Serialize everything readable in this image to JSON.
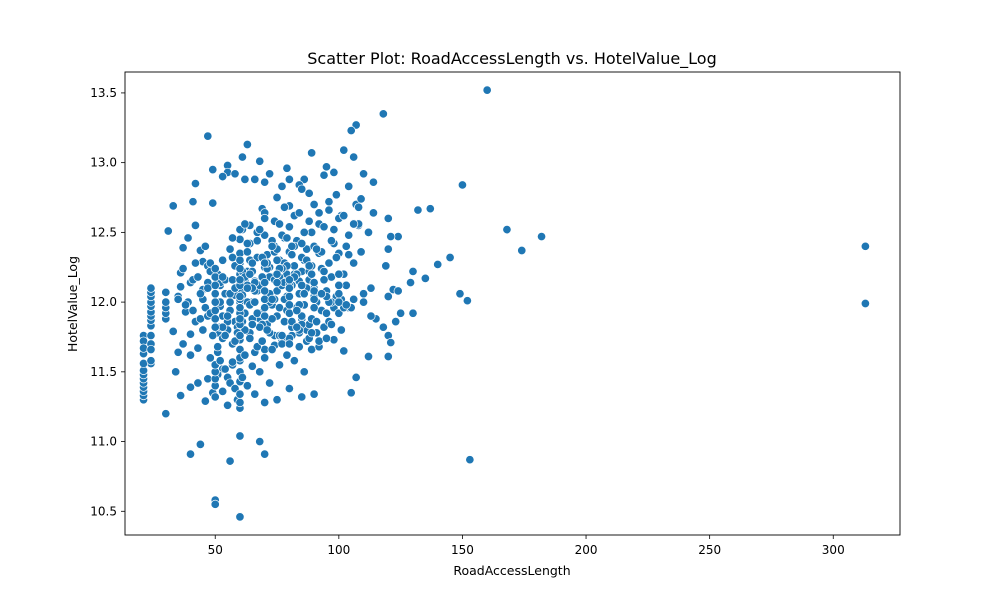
{
  "chart_data": {
    "type": "scatter",
    "title": "Scatter Plot: RoadAccessLength vs. HotelValue_Log",
    "xlabel": "RoadAccessLength",
    "ylabel": "HotelValue_Log",
    "xlim": [
      13.5,
      327
    ],
    "ylim": [
      10.33,
      13.65
    ],
    "xticks": [
      50,
      100,
      150,
      200,
      250,
      300
    ],
    "yticks": [
      10.5,
      11.0,
      11.5,
      12.0,
      12.5,
      13.0,
      13.5
    ],
    "ytick_labels": [
      "10.5",
      "11.0",
      "11.5",
      "12.0",
      "12.5",
      "13.0",
      "13.5"
    ],
    "grid": false,
    "legend": "none",
    "color": "#1f77b4",
    "series": [
      {
        "x": [
          160,
          118,
          107,
          105,
          47,
          63,
          61,
          68,
          55,
          49,
          55,
          72,
          89,
          95,
          110,
          114,
          106,
          102,
          98,
          94,
          86,
          84,
          80,
          79,
          77,
          70,
          66,
          62,
          58,
          53,
          49,
          42,
          41,
          33,
          31,
          42,
          37,
          39,
          44,
          45,
          47,
          50,
          61,
          64,
          69,
          70,
          75,
          80,
          85,
          88,
          92,
          96,
          99,
          101,
          104,
          107,
          108,
          109,
          150,
          168,
          182,
          174,
          137,
          132,
          130,
          129,
          124,
          121,
          119,
          120,
          122,
          124,
          120,
          113,
          110,
          106,
          100,
          98,
          95,
          89,
          87,
          84,
          81,
          77,
          74,
          70,
          66,
          60,
          57,
          53,
          51,
          47,
          43,
          40,
          36,
          34,
          30,
          24,
          21,
          21,
          21,
          21,
          21,
          21,
          21,
          21,
          21,
          21,
          21,
          21,
          21,
          21,
          24,
          24,
          24,
          24,
          24,
          24,
          24,
          24,
          24,
          24,
          24,
          24,
          24,
          30,
          30,
          30,
          30,
          30,
          33,
          35,
          35,
          36,
          36,
          37,
          38,
          39,
          40,
          40,
          40,
          41,
          42,
          43,
          44,
          45,
          45,
          46,
          47,
          48,
          49,
          50,
          50,
          50,
          50,
          50,
          51,
          51,
          51,
          51,
          52,
          52,
          52,
          52,
          53,
          53,
          53,
          54,
          54,
          55,
          55,
          55,
          56,
          56,
          57,
          57,
          57,
          58,
          58,
          59,
          59,
          60,
          60,
          60,
          60,
          60,
          60,
          60,
          60,
          60,
          60,
          60,
          60,
          60,
          60,
          60,
          60,
          60,
          60,
          60,
          61,
          61,
          62,
          62,
          63,
          63,
          64,
          64,
          65,
          65,
          66,
          66,
          67,
          67,
          68,
          68,
          69,
          69,
          70,
          70,
          70,
          70,
          70,
          71,
          71,
          72,
          72,
          73,
          73,
          74,
          74,
          75,
          75,
          75,
          76,
          76,
          77,
          77,
          78,
          78,
          79,
          79,
          80,
          80,
          80,
          80,
          81,
          81,
          82,
          82,
          83,
          83,
          84,
          84,
          85,
          85,
          85,
          86,
          86,
          87,
          87,
          88,
          88,
          89,
          89,
          90,
          90,
          90,
          90,
          91,
          91,
          92,
          93,
          94,
          95,
          96,
          97,
          98,
          99,
          100,
          100,
          101,
          102,
          103,
          104,
          105,
          106,
          107,
          108,
          110,
          112,
          115,
          118,
          120,
          120,
          121,
          125,
          130,
          135,
          140,
          145,
          149,
          152,
          153,
          40,
          44,
          56,
          60,
          68,
          70,
          50,
          50,
          60,
          313,
          313,
          46,
          48,
          52,
          56,
          58,
          62,
          64,
          66,
          72,
          74,
          76,
          78,
          82,
          84,
          86,
          88,
          92,
          94,
          96,
          98,
          102,
          104,
          63,
          67,
          71,
          73,
          77,
          79,
          83,
          87,
          91,
          93,
          97,
          55,
          59,
          65,
          69,
          75,
          81,
          85,
          89,
          95,
          61,
          65,
          71,
          75,
          79,
          85,
          89,
          52,
          56,
          58,
          62,
          66,
          68,
          72,
          74,
          78,
          82,
          86,
          54,
          58,
          62,
          64,
          68,
          72,
          76,
          80,
          84,
          88,
          92,
          57,
          63,
          67,
          73,
          77,
          81,
          46,
          48,
          52,
          56,
          60,
          64,
          68,
          72,
          76,
          50,
          54,
          58,
          62,
          66,
          70,
          74,
          80,
          86,
          63,
          69,
          75,
          81,
          87,
          93,
          99,
          55,
          61,
          67,
          73,
          79,
          85,
          91,
          97,
          59,
          65,
          71,
          77,
          83,
          89,
          60,
          66,
          72,
          78,
          84,
          90,
          96,
          102,
          43,
          47,
          51,
          57,
          63,
          69,
          75,
          45,
          49,
          53,
          59,
          65,
          71,
          77,
          83,
          89,
          95,
          101,
          62,
          68,
          74,
          80,
          86,
          92,
          98,
          104,
          70,
          76,
          82,
          88,
          94,
          100,
          106,
          112,
          67,
          73,
          79,
          85,
          91,
          97,
          103,
          109,
          78,
          84,
          90,
          96,
          102,
          108,
          114,
          120,
          35,
          38,
          41,
          44,
          47,
          37,
          42,
          48,
          53,
          58,
          64,
          70,
          76,
          82,
          88,
          94,
          100,
          60,
          60,
          60,
          60,
          60,
          60,
          60,
          60,
          60,
          60,
          50,
          50,
          50,
          50,
          50,
          50,
          50,
          50,
          70,
          70,
          70,
          70,
          70,
          80,
          80,
          80,
          80,
          80,
          90,
          90,
          90,
          90,
          100,
          100,
          100,
          65,
          75,
          85,
          95,
          105,
          53,
          63,
          73,
          83,
          93,
          103,
          113,
          123
        ],
        "y": [
          13.52,
          13.35,
          13.27,
          13.23,
          13.19,
          13.13,
          13.04,
          13.01,
          12.98,
          12.95,
          12.93,
          12.92,
          13.07,
          12.97,
          12.92,
          12.86,
          13.04,
          13.09,
          12.93,
          12.91,
          12.88,
          12.84,
          12.88,
          12.96,
          12.83,
          12.86,
          12.88,
          12.88,
          12.92,
          12.9,
          12.71,
          12.85,
          12.72,
          12.69,
          12.51,
          12.55,
          12.39,
          12.46,
          12.37,
          12.29,
          12.26,
          12.24,
          12.52,
          12.55,
          12.67,
          12.64,
          12.75,
          12.69,
          12.81,
          12.78,
          12.64,
          12.72,
          12.77,
          12.62,
          12.83,
          12.7,
          12.55,
          12.74,
          12.84,
          12.52,
          12.47,
          12.37,
          12.67,
          12.66,
          12.22,
          12.14,
          12.47,
          12.47,
          12.26,
          12.38,
          12.09,
          12.08,
          12.04,
          12.1,
          12.06,
          12.02,
          12.0,
          11.96,
          11.92,
          11.87,
          11.8,
          11.78,
          11.76,
          11.72,
          11.69,
          11.66,
          11.64,
          11.58,
          11.55,
          11.52,
          11.48,
          11.45,
          11.42,
          11.39,
          11.33,
          11.5,
          11.2,
          11.56,
          11.3,
          11.33,
          11.36,
          11.39,
          11.42,
          11.45,
          11.48,
          11.51,
          11.56,
          11.63,
          11.68,
          11.76,
          11.72,
          11.67,
          11.76,
          11.83,
          11.87,
          11.9,
          11.93,
          11.97,
          12.0,
          12.04,
          12.07,
          12.1,
          11.7,
          11.66,
          11.58,
          11.88,
          11.92,
          11.96,
          12.0,
          12.07,
          11.79,
          11.64,
          12.04,
          12.21,
          12.11,
          11.7,
          11.93,
          12.0,
          12.14,
          11.62,
          11.77,
          12.16,
          11.86,
          11.67,
          11.88,
          12.02,
          12.09,
          11.29,
          11.9,
          11.6,
          11.35,
          11.4,
          11.45,
          11.5,
          11.55,
          11.32,
          11.64,
          11.78,
          12.19,
          11.68,
          11.82,
          11.97,
          12.14,
          11.58,
          11.74,
          11.36,
          11.9,
          11.52,
          12.06,
          11.26,
          11.46,
          11.8,
          12.0,
          11.42,
          11.7,
          12.32,
          11.57,
          11.86,
          11.38,
          12.1,
          11.3,
          11.24,
          11.28,
          11.34,
          11.43,
          11.5,
          11.6,
          11.66,
          11.73,
          11.8,
          11.87,
          11.94,
          12.0,
          12.08,
          12.13,
          12.2,
          12.28,
          12.35,
          12.45,
          12.52,
          11.46,
          12.05,
          11.62,
          11.92,
          11.4,
          12.22,
          11.78,
          12.42,
          11.54,
          12.0,
          11.34,
          12.15,
          11.68,
          12.32,
          11.88,
          11.5,
          12.1,
          11.72,
          11.28,
          11.6,
          11.96,
          12.25,
          12.48,
          11.84,
          12.34,
          11.42,
          12.02,
          11.66,
          12.18,
          11.76,
          12.4,
          11.3,
          12.08,
          11.9,
          11.55,
          12.3,
          11.7,
          12.14,
          11.86,
          12.46,
          11.62,
          12.2,
          11.38,
          11.74,
          12.04,
          12.36,
          11.82,
          12.12,
          11.58,
          12.26,
          11.94,
          12.44,
          11.68,
          12.06,
          11.32,
          11.88,
          12.22,
          11.5,
          11.98,
          12.38,
          11.72,
          12.16,
          11.84,
          12.5,
          11.66,
          11.96,
          11.34,
          12.1,
          12.4,
          11.78,
          12.0,
          11.68,
          12.24,
          11.82,
          12.08,
          11.86,
          12.18,
          11.73,
          12.04,
          11.92,
          12.35,
          12.02,
          11.65,
          12.12,
          11.96,
          11.35,
          12.28,
          11.46,
          12.56,
          12.0,
          11.61,
          11.88,
          11.82,
          11.76,
          11.61,
          11.71,
          11.92,
          11.92,
          12.17,
          12.27,
          12.32,
          12.06,
          12.01,
          10.87,
          10.91,
          10.98,
          10.86,
          11.04,
          11.0,
          10.91,
          10.58,
          10.55,
          10.46,
          12.4,
          11.99,
          12.4,
          12.28,
          12.12,
          12.38,
          12.05,
          12.2,
          12.3,
          12.1,
          12.25,
          12.36,
          12.18,
          12.28,
          12.4,
          12.15,
          12.3,
          12.22,
          12.35,
          12.16,
          12.28,
          12.42,
          12.2,
          12.34,
          12.0,
          12.08,
          12.02,
          11.98,
          12.12,
          12.04,
          11.96,
          12.1,
          12.06,
          11.94,
          12.0,
          11.86,
          11.82,
          11.88,
          11.84,
          11.9,
          11.86,
          11.84,
          11.88,
          11.92,
          12.22,
          12.28,
          12.24,
          12.3,
          12.26,
          12.32,
          12.2,
          12.14,
          12.06,
          12.1,
          12.16,
          12.08,
          12.12,
          12.18,
          12.02,
          12.14,
          12.2,
          12.06,
          11.76,
          11.72,
          11.8,
          11.74,
          11.82,
          11.78,
          11.76,
          11.7,
          11.8,
          11.74,
          11.72,
          12.46,
          12.42,
          12.5,
          12.44,
          12.48,
          12.4,
          11.96,
          11.92,
          12.0,
          11.94,
          12.02,
          11.98,
          11.92,
          12.0,
          11.96,
          12.12,
          12.16,
          12.1,
          12.18,
          12.14,
          12.08,
          12.16,
          12.12,
          12.06,
          12.36,
          12.32,
          12.38,
          12.34,
          12.3,
          12.36,
          12.32,
          11.9,
          11.86,
          11.92,
          11.88,
          11.94,
          11.9,
          11.86,
          11.84,
          12.26,
          12.22,
          12.28,
          12.24,
          12.2,
          12.26,
          12.04,
          12.0,
          12.06,
          12.02,
          11.98,
          12.04,
          12.0,
          11.96,
          12.18,
          12.14,
          12.2,
          12.16,
          12.12,
          12.18,
          12.14,
          11.8,
          11.76,
          11.82,
          11.78,
          11.84,
          11.8,
          11.76,
          11.82,
          11.78,
          11.74,
          11.8,
          12.56,
          12.52,
          12.58,
          12.54,
          12.5,
          12.56,
          12.52,
          12.48,
          12.6,
          12.56,
          12.62,
          12.58,
          12.54,
          12.6,
          12.56,
          12.5,
          12.44,
          12.4,
          12.46,
          12.42,
          12.38,
          12.44,
          12.4,
          12.36,
          12.68,
          12.64,
          12.7,
          12.66,
          12.62,
          12.68,
          12.64,
          12.6,
          12.02,
          11.98,
          11.94,
          12.06,
          12.1,
          12.24,
          12.28,
          12.22,
          12.3,
          12.26,
          12.2,
          12.28,
          12.24,
          12.18,
          12.26,
          12.22,
          12.2,
          11.92,
          11.96,
          12.04,
          12.12,
          12.16,
          12.24,
          11.84,
          11.88,
          11.76,
          12.3,
          11.88,
          11.94,
          12.0,
          12.06,
          12.12,
          12.18,
          11.82,
          12.24,
          11.9,
          11.96,
          12.02,
          12.08,
          12.14,
          11.92,
          11.98,
          12.04,
          12.1,
          12.16,
          11.96,
          12.02,
          12.08,
          12.14,
          12.0,
          12.06,
          12.12,
          12.1,
          12.2,
          12.12,
          12.04,
          11.96,
          12.18,
          12.1,
          12.02,
          11.94,
          12.06,
          11.98,
          11.9,
          11.86
        ]
      }
    ]
  }
}
